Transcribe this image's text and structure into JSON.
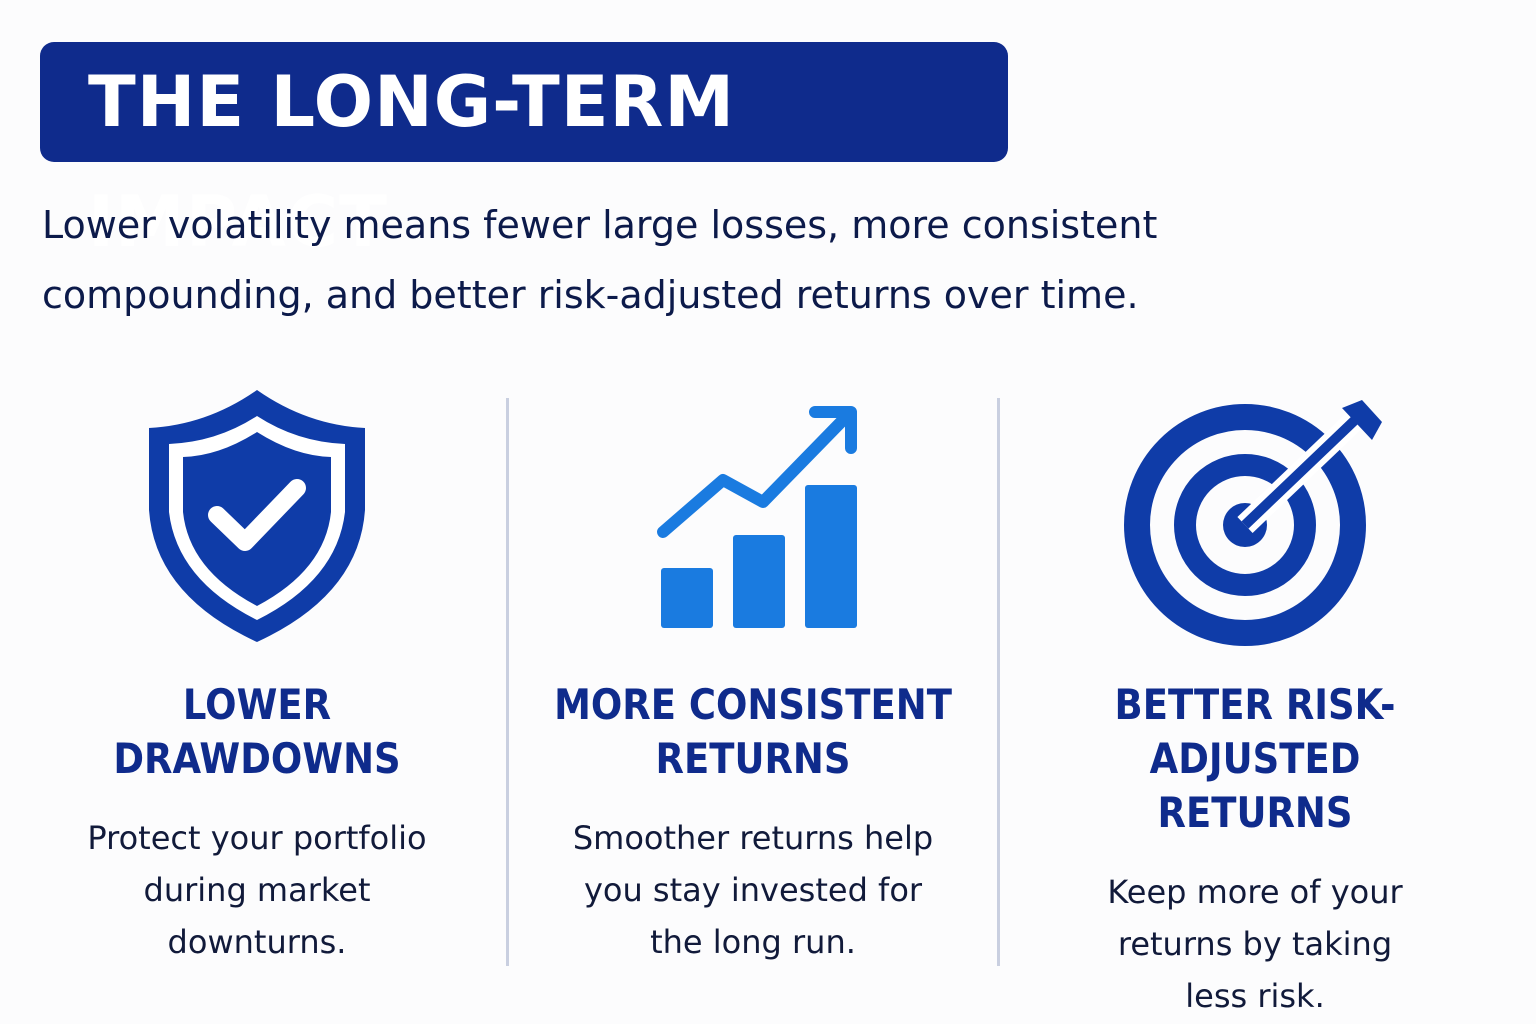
{
  "header": {
    "title": "THE LONG-TERM IMPACT",
    "intro": [
      "Lower volatility means fewer large losses, more consistent",
      "compounding, and better risk-adjusted returns over time."
    ]
  },
  "features": [
    {
      "title": [
        "LOWER DRAWDOWNS"
      ],
      "text": [
        "Protect your portfolio",
        "during market",
        "downturns."
      ]
    },
    {
      "title": [
        "MORE CONSISTENT",
        "RETURNS"
      ],
      "text": [
        "Smoother returns help",
        "you stay invested for",
        "the long run."
      ]
    },
    {
      "title": [
        "BETTER RISK-ADJUSTED",
        "RETURNS"
      ],
      "text": [
        "Keep more of your",
        "returns by taking",
        "less risk."
      ]
    }
  ]
}
